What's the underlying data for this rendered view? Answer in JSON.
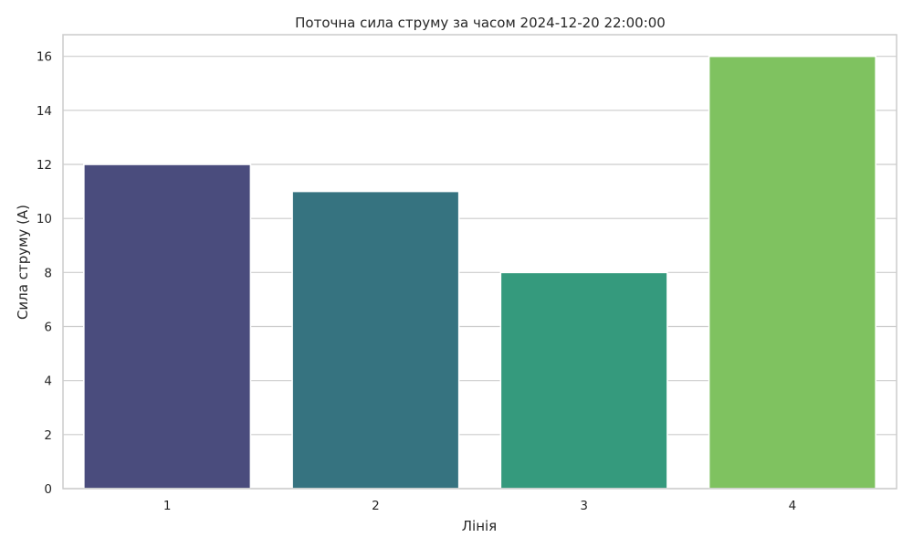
{
  "chart_data": {
    "type": "bar",
    "title": "Поточна сила струму за часом 2024-12-20 22:00:00",
    "xlabel": "Лінія",
    "ylabel": "Сила струму (А)",
    "categories": [
      "1",
      "2",
      "3",
      "4"
    ],
    "values": [
      12,
      11,
      8,
      16
    ],
    "colors": [
      "#4a4c7d",
      "#367380",
      "#359a7d",
      "#7fc260"
    ],
    "ylim": [
      0,
      16.8
    ],
    "yticks": [
      0,
      2,
      4,
      6,
      8,
      10,
      12,
      14,
      16
    ],
    "grid": true,
    "legend": "none"
  }
}
